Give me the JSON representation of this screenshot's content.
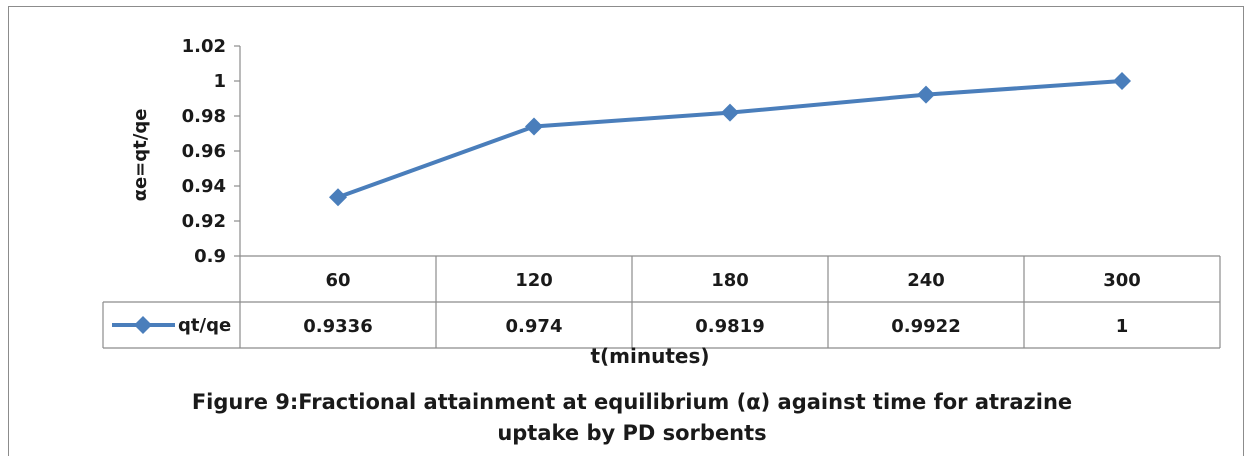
{
  "chart_data": {
    "type": "line",
    "categories": [
      "60",
      "120",
      "180",
      "240",
      "300"
    ],
    "series": [
      {
        "name": "qt/qe",
        "values": [
          0.9336,
          0.974,
          0.9819,
          0.9922,
          1
        ],
        "labels": [
          "0.9336",
          "0.974",
          "0.9819",
          "0.9922",
          "1"
        ]
      }
    ],
    "ylim": [
      0.9,
      1.02
    ],
    "yticks": [
      "1.02",
      "1",
      "0.98",
      "0.96",
      "0.94",
      "0.92",
      "0.9"
    ],
    "ylabel": "αe=qt/qe",
    "xlabel": "t(minutes)",
    "caption_line1": "Figure 9:Fractional attainment at equilibrium (α) against time for atrazine",
    "caption_line2": "uptake by  PD sorbents",
    "grid": false,
    "legend": "data-table",
    "line_color": "#4a7ebb"
  }
}
